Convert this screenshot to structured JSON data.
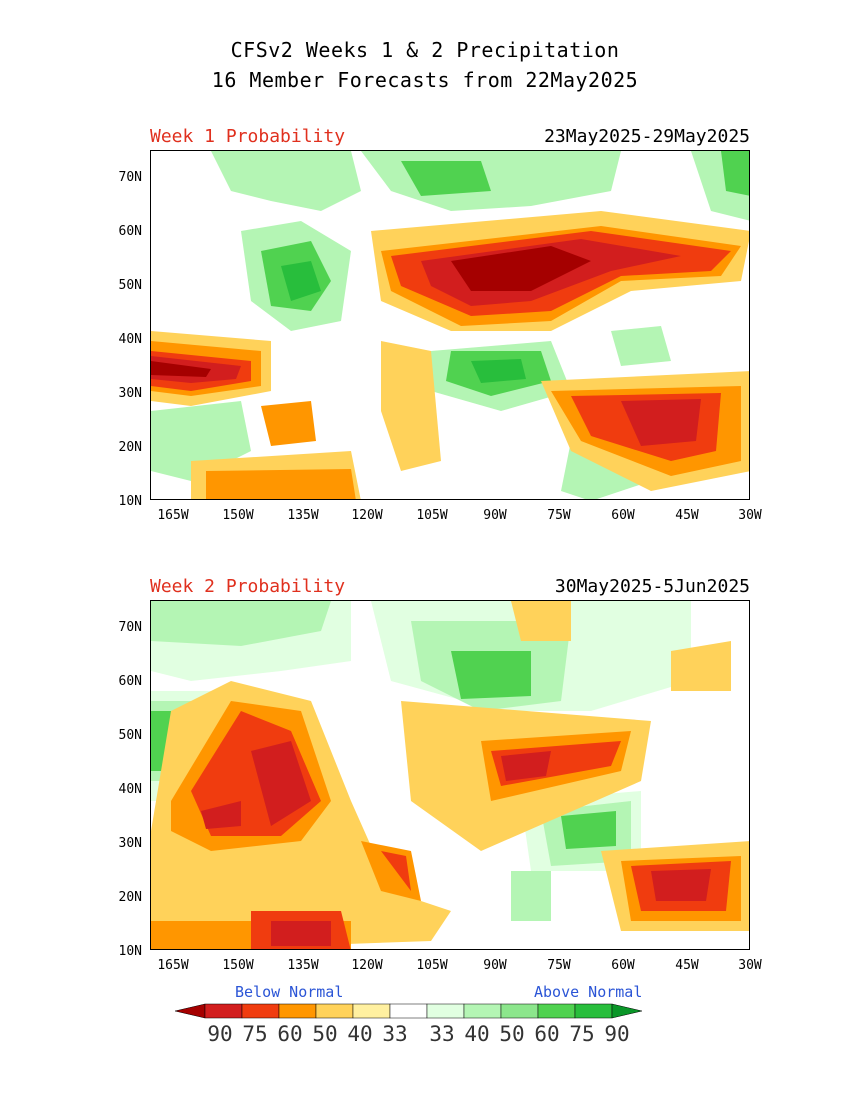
{
  "title_line1": "CFSv2 Weeks 1 & 2 Precipitation",
  "title_line2": "16 Member Forecasts from 22May2025",
  "panels": [
    {
      "label": "Week 1 Probability",
      "dates": "23May2025-29May2025"
    },
    {
      "label": "Week 2 Probability",
      "dates": "30May2025-5Jun2025"
    }
  ],
  "lat_ticks": [
    "70N",
    "60N",
    "50N",
    "40N",
    "30N",
    "20N",
    "10N"
  ],
  "lon_ticks": [
    "165W",
    "150W",
    "135W",
    "120W",
    "105W",
    "90W",
    "75W",
    "60W",
    "45W",
    "30W"
  ],
  "legend": {
    "below": "Below Normal",
    "above": "Above Normal",
    "values": [
      "90",
      "75",
      "60",
      "50",
      "40",
      "33",
      "33",
      "40",
      "50",
      "60",
      "75",
      "90"
    ],
    "colors": [
      "#a50000",
      "#d21e1e",
      "#f03c0f",
      "#ff9600",
      "#ffd25a",
      "#fff0a0",
      "#ffffff",
      "#e1ffe1",
      "#b4f5b4",
      "#8ce68c",
      "#50d250",
      "#28be3c",
      "#0a9628"
    ]
  }
}
